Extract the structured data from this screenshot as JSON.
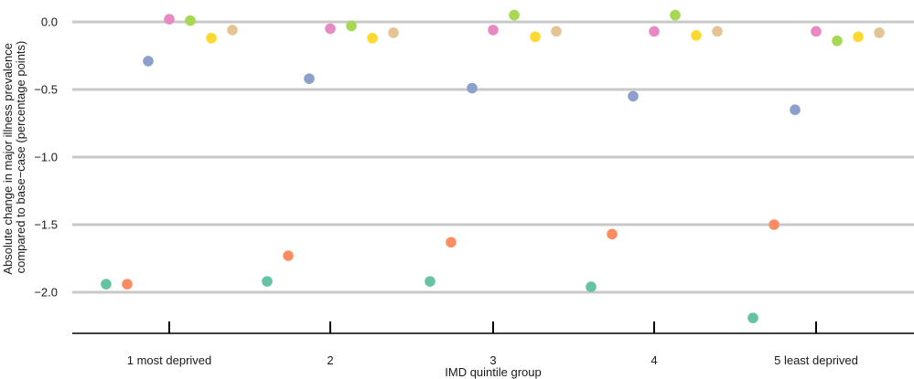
{
  "chart_data": {
    "type": "scatter",
    "title": "",
    "xlabel": "IMD quintile group",
    "ylabel_lines": [
      "Absolute change in major illness prevalence",
      "compared to base−case (percentage points)"
    ],
    "categories": [
      "1 most deprived",
      "2",
      "3",
      "4",
      "5 least deprived"
    ],
    "y_ticks": [
      0.0,
      -0.5,
      -1.0,
      -1.5,
      -2.0
    ],
    "y_tick_labels": [
      "0.0",
      "−0.5",
      "−1.0",
      "−1.5",
      "−2.0"
    ],
    "ylim": [
      -2.32,
      0.12
    ],
    "grid": "horizontal",
    "legend": "none",
    "series": [
      {
        "color": "#66c2a5",
        "values": [
          -1.94,
          -1.92,
          -1.92,
          -1.96,
          -2.19
        ]
      },
      {
        "color": "#fc8d62",
        "values": [
          -1.94,
          -1.73,
          -1.63,
          -1.57,
          -1.5
        ]
      },
      {
        "color": "#8da0cb",
        "values": [
          -0.29,
          -0.42,
          -0.49,
          -0.55,
          -0.65
        ]
      },
      {
        "color": "#e78ac3",
        "values": [
          0.02,
          -0.05,
          -0.06,
          -0.07,
          -0.07
        ]
      },
      {
        "color": "#a6d854",
        "values": [
          0.01,
          -0.03,
          0.05,
          0.05,
          -0.14
        ]
      },
      {
        "color": "#ffd92f",
        "values": [
          -0.12,
          -0.12,
          -0.11,
          -0.1,
          -0.11
        ]
      },
      {
        "color": "#e5c494",
        "values": [
          -0.06,
          -0.08,
          -0.07,
          -0.07,
          -0.08
        ]
      }
    ]
  }
}
